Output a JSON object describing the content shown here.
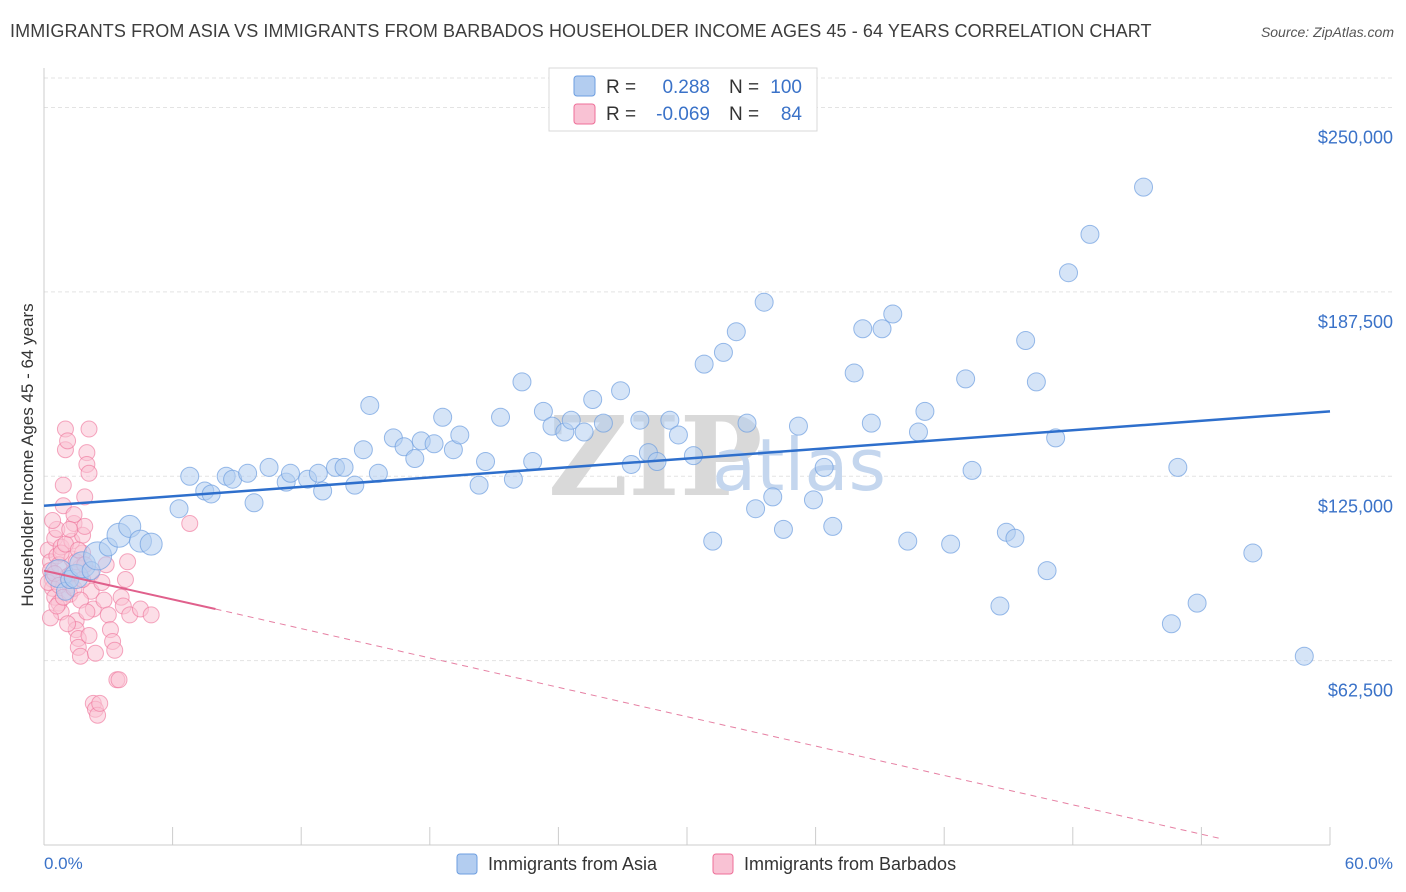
{
  "title": "IMMIGRANTS FROM ASIA VS IMMIGRANTS FROM BARBADOS HOUSEHOLDER INCOME AGES 45 - 64 YEARS CORRELATION CHART",
  "source": "Source: ZipAtlas.com",
  "watermark": {
    "zip": "ZIP",
    "atlas": "atlas"
  },
  "legend": {
    "rows": [
      {
        "r_label": "R =",
        "r_value": "0.288",
        "n_label": "N =",
        "n_value": "100",
        "color": "#a7c4ee"
      },
      {
        "r_label": "R =",
        "r_value": "-0.069",
        "n_label": "N =",
        "n_value": "84",
        "color": "#f7b6cb"
      }
    ]
  },
  "bottom_legend": [
    "Immigrants from Asia",
    "Immigrants from Barbados"
  ],
  "chart_data": {
    "type": "scatter",
    "ylabel": "Householder Income Ages 45 - 64 years",
    "x_tick_labels": [
      "0.0%",
      "60.0%"
    ],
    "y_tick_labels": [
      "$62,500",
      "$125,000",
      "$187,500",
      "$250,000"
    ],
    "y_ticks": [
      62500,
      125000,
      187500,
      250000
    ],
    "xlim": [
      0,
      60
    ],
    "ylim": [
      0,
      260000
    ],
    "grid": true,
    "colors": {
      "asia": "#6d9ee0",
      "asia_fill": "#b3cdf0",
      "barbados": "#ee6f98",
      "barbados_fill": "#f9c2d4",
      "trend_asia": "#2e6fcc",
      "trend_barbados": "#e0608c"
    },
    "series": [
      {
        "name": "Immigrants from Asia",
        "trend": {
          "x": [
            0,
            60
          ],
          "y": [
            115000,
            147000
          ]
        },
        "points": [
          [
            0.7,
            92000
          ],
          [
            1.0,
            86000
          ],
          [
            1.2,
            90000
          ],
          [
            1.5,
            91000
          ],
          [
            1.8,
            95000
          ],
          [
            2.2,
            93000
          ],
          [
            2.5,
            98000
          ],
          [
            3.0,
            101000
          ],
          [
            3.5,
            105000
          ],
          [
            4.0,
            108000
          ],
          [
            4.5,
            103000
          ],
          [
            5.0,
            102000
          ],
          [
            6.3,
            114000
          ],
          [
            6.8,
            125000
          ],
          [
            7.5,
            120000
          ],
          [
            7.8,
            119000
          ],
          [
            8.5,
            125000
          ],
          [
            8.8,
            124000
          ],
          [
            9.5,
            126000
          ],
          [
            9.8,
            116000
          ],
          [
            10.5,
            128000
          ],
          [
            11.3,
            123000
          ],
          [
            11.5,
            126000
          ],
          [
            12.3,
            124000
          ],
          [
            12.8,
            126000
          ],
          [
            13.0,
            120000
          ],
          [
            13.6,
            128000
          ],
          [
            14.0,
            128000
          ],
          [
            14.5,
            122000
          ],
          [
            14.9,
            134000
          ],
          [
            15.2,
            149000
          ],
          [
            15.6,
            126000
          ],
          [
            16.3,
            138000
          ],
          [
            16.8,
            135000
          ],
          [
            17.3,
            131000
          ],
          [
            17.6,
            137000
          ],
          [
            18.2,
            136000
          ],
          [
            18.6,
            145000
          ],
          [
            19.1,
            134000
          ],
          [
            19.4,
            139000
          ],
          [
            20.3,
            122000
          ],
          [
            20.6,
            130000
          ],
          [
            21.3,
            145000
          ],
          [
            21.9,
            124000
          ],
          [
            22.3,
            157000
          ],
          [
            22.8,
            130000
          ],
          [
            23.3,
            147000
          ],
          [
            23.7,
            142000
          ],
          [
            24.3,
            140000
          ],
          [
            24.6,
            144000
          ],
          [
            25.2,
            140000
          ],
          [
            25.6,
            151000
          ],
          [
            26.1,
            143000
          ],
          [
            26.9,
            154000
          ],
          [
            27.4,
            129000
          ],
          [
            27.8,
            144000
          ],
          [
            28.2,
            133000
          ],
          [
            28.6,
            130000
          ],
          [
            29.2,
            144000
          ],
          [
            29.6,
            139000
          ],
          [
            30.3,
            132000
          ],
          [
            30.8,
            163000
          ],
          [
            31.2,
            103000
          ],
          [
            31.7,
            167000
          ],
          [
            32.3,
            174000
          ],
          [
            32.8,
            143000
          ],
          [
            33.2,
            114000
          ],
          [
            33.6,
            184000
          ],
          [
            34.0,
            118000
          ],
          [
            34.5,
            107000
          ],
          [
            35.2,
            142000
          ],
          [
            35.9,
            117000
          ],
          [
            36.4,
            128000
          ],
          [
            36.8,
            108000
          ],
          [
            37.8,
            160000
          ],
          [
            38.2,
            175000
          ],
          [
            38.6,
            143000
          ],
          [
            39.1,
            175000
          ],
          [
            39.6,
            180000
          ],
          [
            40.3,
            103000
          ],
          [
            40.8,
            140000
          ],
          [
            41.1,
            147000
          ],
          [
            42.3,
            102000
          ],
          [
            43.0,
            158000
          ],
          [
            43.3,
            127000
          ],
          [
            44.6,
            81000
          ],
          [
            44.9,
            106000
          ],
          [
            45.3,
            104000
          ],
          [
            45.8,
            171000
          ],
          [
            46.3,
            157000
          ],
          [
            46.8,
            93000
          ],
          [
            47.2,
            138000
          ],
          [
            47.8,
            194000
          ],
          [
            48.8,
            207000
          ],
          [
            51.3,
            223000
          ],
          [
            52.6,
            75000
          ],
          [
            52.9,
            128000
          ],
          [
            53.8,
            82000
          ],
          [
            56.4,
            99000
          ],
          [
            58.8,
            64000
          ]
        ]
      },
      {
        "name": "Immigrants from Barbados",
        "trend": {
          "x": [
            0,
            8
          ],
          "y": [
            93000,
            80000
          ],
          "dashed_to": {
            "x": 55,
            "y": 2000
          }
        },
        "points": [
          [
            0.2,
            100000
          ],
          [
            0.3,
            96000
          ],
          [
            0.3,
            93000
          ],
          [
            0.4,
            90000
          ],
          [
            0.4,
            87000
          ],
          [
            0.5,
            84000
          ],
          [
            0.5,
            104000
          ],
          [
            0.6,
            107000
          ],
          [
            0.6,
            98000
          ],
          [
            0.7,
            95000
          ],
          [
            0.7,
            82000
          ],
          [
            0.8,
            79000
          ],
          [
            0.8,
            101000
          ],
          [
            0.9,
            115000
          ],
          [
            0.9,
            122000
          ],
          [
            1.0,
            134000
          ],
          [
            1.0,
            141000
          ],
          [
            1.1,
            137000
          ],
          [
            1.1,
            91000
          ],
          [
            1.2,
            88000
          ],
          [
            1.2,
            85000
          ],
          [
            1.3,
            97000
          ],
          [
            1.3,
            103000
          ],
          [
            1.4,
            109000
          ],
          [
            1.4,
            112000
          ],
          [
            1.5,
            76000
          ],
          [
            1.5,
            73000
          ],
          [
            1.6,
            70000
          ],
          [
            1.6,
            67000
          ],
          [
            1.7,
            64000
          ],
          [
            1.7,
            94000
          ],
          [
            1.8,
            99000
          ],
          [
            1.8,
            105000
          ],
          [
            1.9,
            118000
          ],
          [
            1.9,
            108000
          ],
          [
            2.0,
            133000
          ],
          [
            2.0,
            129000
          ],
          [
            2.1,
            126000
          ],
          [
            2.1,
            141000
          ],
          [
            2.2,
            92000
          ],
          [
            2.2,
            86000
          ],
          [
            2.3,
            80000
          ],
          [
            2.3,
            48000
          ],
          [
            2.4,
            46000
          ],
          [
            2.5,
            44000
          ],
          [
            2.6,
            48000
          ],
          [
            2.7,
            89000
          ],
          [
            2.8,
            83000
          ],
          [
            2.9,
            95000
          ],
          [
            3.0,
            78000
          ],
          [
            3.1,
            73000
          ],
          [
            3.2,
            69000
          ],
          [
            3.3,
            66000
          ],
          [
            3.4,
            56000
          ],
          [
            3.5,
            56000
          ],
          [
            3.6,
            84000
          ],
          [
            3.7,
            81000
          ],
          [
            3.8,
            90000
          ],
          [
            3.9,
            96000
          ],
          [
            4.0,
            78000
          ],
          [
            4.5,
            80000
          ],
          [
            5.0,
            78000
          ],
          [
            6.8,
            109000
          ],
          [
            0.2,
            89000
          ],
          [
            0.3,
            77000
          ],
          [
            0.4,
            110000
          ],
          [
            0.5,
            92000
          ],
          [
            0.6,
            81000
          ],
          [
            0.7,
            88000
          ],
          [
            0.8,
            99000
          ],
          [
            0.9,
            84000
          ],
          [
            1.0,
            102000
          ],
          [
            1.1,
            75000
          ],
          [
            1.2,
            107000
          ],
          [
            1.3,
            92000
          ],
          [
            1.4,
            87000
          ],
          [
            1.5,
            96000
          ],
          [
            1.6,
            100000
          ],
          [
            1.7,
            83000
          ],
          [
            1.8,
            90000
          ],
          [
            1.9,
            95000
          ],
          [
            2.0,
            79000
          ],
          [
            2.1,
            71000
          ],
          [
            2.4,
            65000
          ]
        ]
      }
    ]
  }
}
